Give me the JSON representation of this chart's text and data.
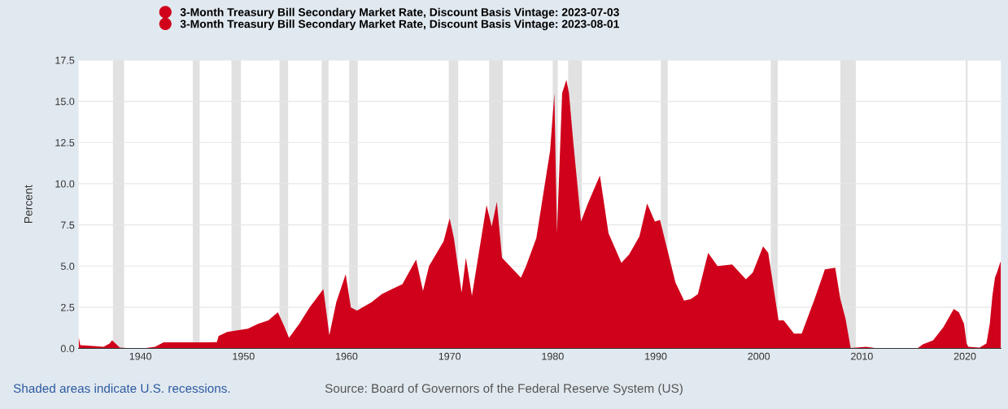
{
  "chart_data": {
    "type": "area",
    "ylabel": "Percent",
    "x": [
      "1934-01",
      "1934-03",
      "1935-06",
      "1936-06",
      "1937-01",
      "1937-04",
      "1938-01",
      "1939-01",
      "1940-06",
      "1941-06",
      "1942-04",
      "1947-06",
      "1947-08",
      "1948-06",
      "1949-06",
      "1950-06",
      "1951-06",
      "1952-06",
      "1953-05",
      "1953-12",
      "1954-06",
      "1955-06",
      "1956-06",
      "1957-10",
      "1958-05",
      "1959-01",
      "1959-12",
      "1960-06",
      "1961-01",
      "1962-06",
      "1963-06",
      "1964-06",
      "1965-06",
      "1966-10",
      "1967-06",
      "1968-01",
      "1969-06",
      "1970-01",
      "1970-06",
      "1971-03",
      "1971-08",
      "1972-03",
      "1973-08",
      "1974-02",
      "1974-08",
      "1975-02",
      "1976-12",
      "1977-06",
      "1978-06",
      "1979-10",
      "1980-03",
      "1980-06",
      "1980-12",
      "1981-05",
      "1981-08",
      "1982-01",
      "1982-10",
      "1983-06",
      "1984-08",
      "1985-06",
      "1986-09",
      "1987-06",
      "1988-06",
      "1989-03",
      "1989-12",
      "1990-06",
      "1991-12",
      "1992-10",
      "1993-06",
      "1994-02",
      "1995-02",
      "1996-01",
      "1997-06",
      "1998-10",
      "1999-06",
      "2000-06",
      "2000-12",
      "2001-12",
      "2002-06",
      "2003-06",
      "2004-03",
      "2005-06",
      "2006-06",
      "2007-06",
      "2007-12",
      "2008-06",
      "2008-12",
      "2010-06",
      "2011-06",
      "2015-06",
      "2015-12",
      "2016-12",
      "2017-12",
      "2018-12",
      "2019-06",
      "2019-12",
      "2020-03",
      "2020-05",
      "2021-06",
      "2022-02",
      "2022-06",
      "2022-09",
      "2022-12",
      "2023-03",
      "2023-06",
      "2023-07"
    ],
    "series": [
      {
        "name": "3-Month Treasury Bill Secondary Market Rate, Discount Basis Vintage: 2023-07-03",
        "color": "#d0021b",
        "values": [
          0.7,
          0.2,
          0.15,
          0.1,
          0.3,
          0.5,
          0.05,
          0.02,
          0.02,
          0.1,
          0.37,
          0.38,
          0.75,
          1.0,
          1.1,
          1.2,
          1.5,
          1.7,
          2.2,
          1.4,
          0.65,
          1.5,
          2.5,
          3.6,
          0.8,
          2.8,
          4.5,
          2.5,
          2.3,
          2.8,
          3.3,
          3.6,
          3.9,
          5.4,
          3.5,
          5.0,
          6.5,
          7.9,
          6.7,
          3.4,
          5.5,
          3.2,
          8.7,
          7.4,
          8.9,
          5.5,
          4.3,
          5.0,
          6.7,
          12.0,
          15.5,
          7.0,
          15.5,
          16.3,
          15.5,
          12.5,
          7.7,
          8.8,
          10.5,
          7.0,
          5.2,
          5.7,
          6.8,
          8.8,
          7.7,
          7.8,
          4.0,
          2.9,
          3.0,
          3.3,
          5.8,
          5.0,
          5.1,
          4.2,
          4.6,
          6.2,
          5.8,
          1.7,
          1.7,
          0.9,
          0.9,
          3.0,
          4.8,
          4.9,
          3.0,
          1.8,
          0.03,
          0.1,
          0.02,
          0.02,
          0.25,
          0.5,
          1.3,
          2.4,
          2.2,
          1.5,
          0.3,
          0.1,
          0.05,
          0.3,
          1.5,
          3.2,
          4.3,
          null,
          null,
          null
        ]
      },
      {
        "name": "3-Month Treasury Bill Secondary Market Rate, Discount Basis Vintage: 2023-08-01",
        "color": "#d0021b",
        "values": [
          null,
          null,
          null,
          null,
          null,
          null,
          null,
          null,
          null,
          null,
          null,
          null,
          null,
          null,
          null,
          null,
          null,
          null,
          null,
          null,
          null,
          null,
          null,
          null,
          null,
          null,
          null,
          null,
          null,
          null,
          null,
          null,
          null,
          null,
          null,
          null,
          null,
          null,
          null,
          null,
          null,
          null,
          null,
          null,
          null,
          null,
          null,
          null,
          null,
          null,
          null,
          null,
          null,
          null,
          null,
          null,
          null,
          null,
          null,
          null,
          null,
          null,
          null,
          null,
          null,
          null,
          null,
          null,
          null,
          null,
          null,
          null,
          null,
          null,
          null,
          null,
          null,
          null,
          null,
          null,
          null,
          null,
          null,
          null,
          null,
          null,
          null,
          null,
          null,
          null,
          null,
          null,
          null,
          null,
          null,
          null,
          null,
          null,
          null,
          null,
          null,
          null,
          4.3,
          4.7,
          5.2,
          5.3
        ]
      }
    ],
    "xlim": [
      "1934-01",
      "2023-07"
    ],
    "xticks": [
      {
        "value": "1940-01",
        "label": "1940"
      },
      {
        "value": "1950-01",
        "label": "1950"
      },
      {
        "value": "1960-01",
        "label": "1960"
      },
      {
        "value": "1970-01",
        "label": "1970"
      },
      {
        "value": "1980-01",
        "label": "1980"
      },
      {
        "value": "1990-01",
        "label": "1990"
      },
      {
        "value": "2000-01",
        "label": "2000"
      },
      {
        "value": "2010-01",
        "label": "2010"
      },
      {
        "value": "2020-01",
        "label": "2020"
      }
    ],
    "ylim": [
      0,
      17.5
    ],
    "yticks": [
      {
        "value": 0,
        "label": "0.0"
      },
      {
        "value": 2.5,
        "label": "2.5"
      },
      {
        "value": 5,
        "label": "5.0"
      },
      {
        "value": 7.5,
        "label": "7.5"
      },
      {
        "value": 10,
        "label": "10.0"
      },
      {
        "value": 12.5,
        "label": "12.5"
      },
      {
        "value": 15,
        "label": "15.0"
      },
      {
        "value": 17.5,
        "label": "17.5"
      }
    ],
    "grid": "y",
    "legend": "top left",
    "bands": [
      {
        "axis": "x",
        "from": "1937-05",
        "to": "1938-06",
        "color": "#e1e1e1"
      },
      {
        "axis": "x",
        "from": "1945-02",
        "to": "1945-10",
        "color": "#e1e1e1"
      },
      {
        "axis": "x",
        "from": "1948-11",
        "to": "1949-10",
        "color": "#e1e1e1"
      },
      {
        "axis": "x",
        "from": "1953-07",
        "to": "1954-05",
        "color": "#e1e1e1"
      },
      {
        "axis": "x",
        "from": "1957-08",
        "to": "1958-04",
        "color": "#e1e1e1"
      },
      {
        "axis": "x",
        "from": "1960-04",
        "to": "1961-02",
        "color": "#e1e1e1"
      },
      {
        "axis": "x",
        "from": "1969-12",
        "to": "1970-11",
        "color": "#e1e1e1"
      },
      {
        "axis": "x",
        "from": "1973-11",
        "to": "1975-03",
        "color": "#e1e1e1"
      },
      {
        "axis": "x",
        "from": "1980-01",
        "to": "1980-07",
        "color": "#e1e1e1"
      },
      {
        "axis": "x",
        "from": "1981-07",
        "to": "1982-11",
        "color": "#e1e1e1"
      },
      {
        "axis": "x",
        "from": "1990-07",
        "to": "1991-03",
        "color": "#e1e1e1"
      },
      {
        "axis": "x",
        "from": "2001-03",
        "to": "2001-11",
        "color": "#e1e1e1"
      },
      {
        "axis": "x",
        "from": "2007-12",
        "to": "2009-06",
        "color": "#e1e1e1"
      },
      {
        "axis": "x",
        "from": "2020-02",
        "to": "2020-04",
        "color": "#e1e1e1"
      }
    ],
    "annotations": [
      "Shaded areas indicate U.S. recessions.",
      "Source: Board of Governors of the Federal Reserve System (US)"
    ]
  }
}
